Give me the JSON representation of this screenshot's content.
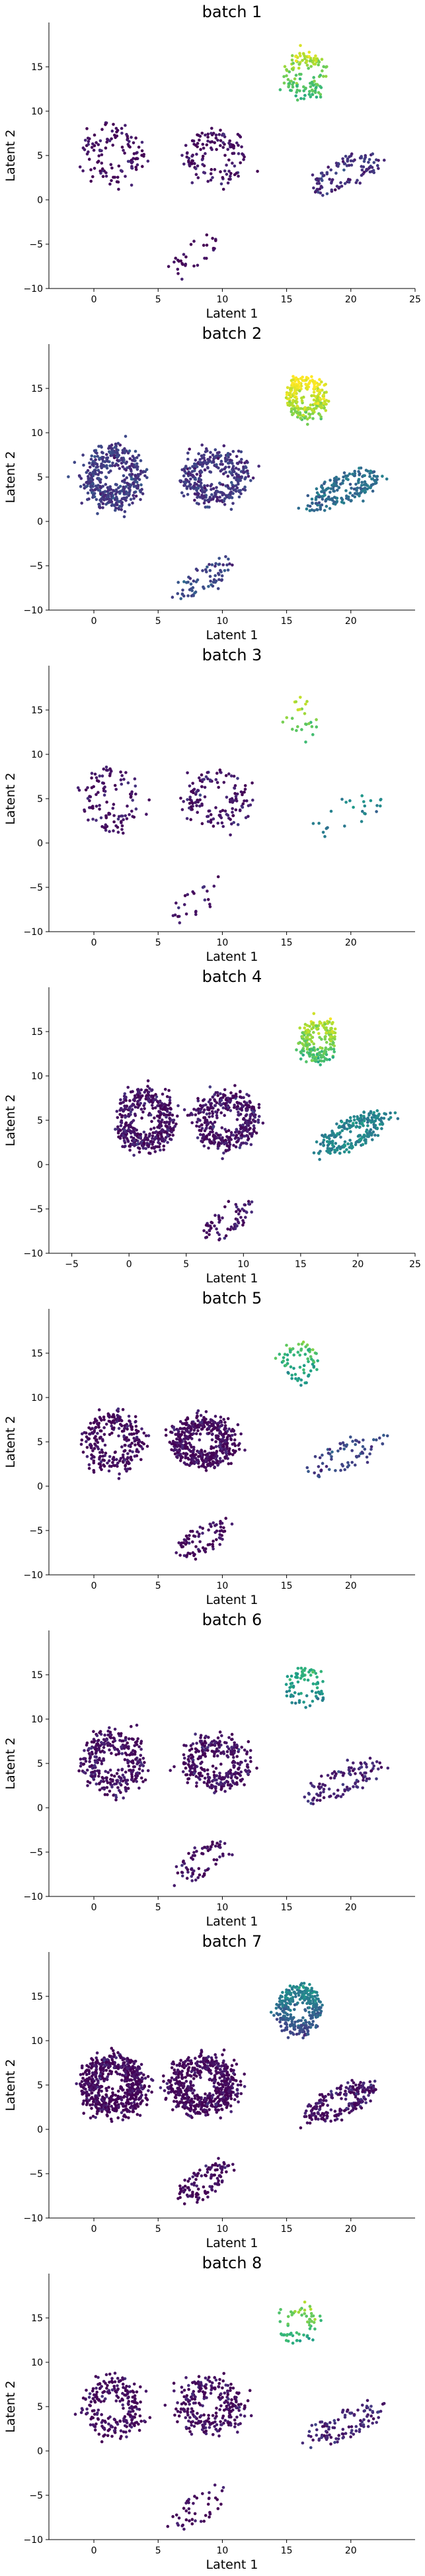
{
  "chart_data": [
    {
      "type": "scatter",
      "title": "batch 1",
      "xlabel": "Latent 1",
      "ylabel": "Latent 2",
      "xlim": [
        -3.5,
        25
      ],
      "ylim": [
        -10,
        20
      ],
      "xticks": [
        0,
        5,
        10,
        15,
        20,
        25
      ],
      "yticks": [
        -10,
        -5,
        0,
        5,
        10,
        15
      ],
      "colormap": "viridis",
      "clusters": [
        {
          "name": "left-loop",
          "cx": 1.5,
          "cy": 5,
          "sx": 2.0,
          "sy": 3.0,
          "n": 120,
          "level": 0.04
        },
        {
          "name": "mid-loop",
          "cx": 9.5,
          "cy": 4.8,
          "sx": 2.2,
          "sy": 2.6,
          "n": 130,
          "level": 0.05
        },
        {
          "name": "bottom-tail",
          "cx": 8,
          "cy": -6,
          "sx": 1.8,
          "sy": 1.4,
          "n": 30,
          "level": 0.03
        },
        {
          "name": "top-right",
          "cx": 16.5,
          "cy": 14,
          "sx": 1.4,
          "sy": 2.2,
          "n": 130,
          "level": 0.78
        },
        {
          "name": "right-arc",
          "cx": 19.5,
          "cy": 3,
          "sx": 2.5,
          "sy": 1.5,
          "n": 110,
          "level": 0.14
        }
      ]
    },
    {
      "type": "scatter",
      "title": "batch 2",
      "xlabel": "Latent 1",
      "ylabel": "Latent 2",
      "xlim": [
        -3.5,
        25
      ],
      "ylim": [
        -10,
        20
      ],
      "xticks": [
        0,
        5,
        10,
        15,
        20
      ],
      "yticks": [
        -10,
        -5,
        0,
        5,
        10,
        15
      ],
      "colormap": "viridis",
      "clusters": [
        {
          "name": "left-loop",
          "cx": 1.5,
          "cy": 5,
          "sx": 2.0,
          "sy": 3.0,
          "n": 420,
          "level": 0.18
        },
        {
          "name": "mid-loop",
          "cx": 9.5,
          "cy": 5,
          "sx": 2.2,
          "sy": 2.6,
          "n": 360,
          "level": 0.16
        },
        {
          "name": "bottom-tail",
          "cx": 8.5,
          "cy": -6.5,
          "sx": 1.8,
          "sy": 1.5,
          "n": 70,
          "level": 0.22
        },
        {
          "name": "top-right",
          "cx": 16.5,
          "cy": 14,
          "sx": 1.4,
          "sy": 2.0,
          "n": 240,
          "level": 0.92
        },
        {
          "name": "right-arc",
          "cx": 19.5,
          "cy": 3.5,
          "sx": 2.5,
          "sy": 1.5,
          "n": 190,
          "level": 0.35
        }
      ]
    },
    {
      "type": "scatter",
      "title": "batch 3",
      "xlabel": "Latent 1",
      "ylabel": "Latent 2",
      "xlim": [
        -3.5,
        25
      ],
      "ylim": [
        -10,
        20
      ],
      "xticks": [
        0,
        5,
        10,
        15,
        20
      ],
      "yticks": [
        -10,
        -5,
        0,
        5,
        10,
        15
      ],
      "colormap": "viridis",
      "clusters": [
        {
          "name": "left-loop",
          "cx": 1.5,
          "cy": 5,
          "sx": 2.0,
          "sy": 3.0,
          "n": 110,
          "level": 0.05
        },
        {
          "name": "mid-loop",
          "cx": 9.5,
          "cy": 5,
          "sx": 2.2,
          "sy": 2.6,
          "n": 140,
          "level": 0.06
        },
        {
          "name": "bottom-tail",
          "cx": 8,
          "cy": -6.5,
          "sx": 1.8,
          "sy": 1.5,
          "n": 25,
          "level": 0.05
        },
        {
          "name": "top-right",
          "cx": 16,
          "cy": 14,
          "sx": 1.2,
          "sy": 2.0,
          "n": 25,
          "level": 0.8
        },
        {
          "name": "right-arc",
          "cx": 19.5,
          "cy": 3,
          "sx": 2.5,
          "sy": 1.5,
          "n": 25,
          "level": 0.45
        }
      ]
    },
    {
      "type": "scatter",
      "title": "batch 4",
      "xlabel": "Latent 1",
      "ylabel": "Latent 2",
      "xlim": [
        -7,
        25
      ],
      "ylim": [
        -10,
        20
      ],
      "xticks": [
        -5,
        0,
        5,
        10,
        15,
        20,
        25
      ],
      "yticks": [
        -10,
        -5,
        0,
        5,
        10,
        15
      ],
      "colormap": "viridis",
      "clusters": [
        {
          "name": "left-loop",
          "cx": 1.5,
          "cy": 5,
          "sx": 2.2,
          "sy": 3.0,
          "n": 420,
          "level": 0.05
        },
        {
          "name": "mid-loop",
          "cx": 8.5,
          "cy": 5,
          "sx": 2.4,
          "sy": 2.8,
          "n": 380,
          "level": 0.05
        },
        {
          "name": "bottom-tail",
          "cx": 8.5,
          "cy": -6.5,
          "sx": 1.8,
          "sy": 1.5,
          "n": 70,
          "level": 0.05
        },
        {
          "name": "top-right",
          "cx": 16.5,
          "cy": 14,
          "sx": 1.4,
          "sy": 2.2,
          "n": 200,
          "level": 0.8
        },
        {
          "name": "right-arc",
          "cx": 19.5,
          "cy": 3.5,
          "sx": 2.5,
          "sy": 1.5,
          "n": 240,
          "level": 0.45
        }
      ]
    },
    {
      "type": "scatter",
      "title": "batch 5",
      "xlabel": "Latent 1",
      "ylabel": "Latent 2",
      "xlim": [
        -3.5,
        25
      ],
      "ylim": [
        -10,
        20
      ],
      "xticks": [
        0,
        5,
        10,
        15,
        20
      ],
      "yticks": [
        -10,
        -5,
        0,
        5,
        10,
        15
      ],
      "colormap": "viridis",
      "clusters": [
        {
          "name": "left-loop",
          "cx": 1.5,
          "cy": 5,
          "sx": 2.0,
          "sy": 3.0,
          "n": 260,
          "level": 0.03
        },
        {
          "name": "mid-loop",
          "cx": 8.5,
          "cy": 5,
          "sx": 2.2,
          "sy": 2.4,
          "n": 480,
          "level": 0.03
        },
        {
          "name": "bottom-tail",
          "cx": 8.5,
          "cy": -6,
          "sx": 1.8,
          "sy": 1.5,
          "n": 80,
          "level": 0.03
        },
        {
          "name": "top-right",
          "cx": 16,
          "cy": 14,
          "sx": 1.2,
          "sy": 2.2,
          "n": 70,
          "level": 0.65
        },
        {
          "name": "right-arc",
          "cx": 19.5,
          "cy": 3.5,
          "sx": 2.5,
          "sy": 1.5,
          "n": 70,
          "level": 0.2
        }
      ]
    },
    {
      "type": "scatter",
      "title": "batch 6",
      "xlabel": "Latent 1",
      "ylabel": "Latent 2",
      "xlim": [
        -3.5,
        25
      ],
      "ylim": [
        -10,
        20
      ],
      "xticks": [
        0,
        5,
        10,
        15,
        20
      ],
      "yticks": [
        -10,
        -5,
        0,
        5,
        10,
        15
      ],
      "colormap": "viridis",
      "clusters": [
        {
          "name": "left-loop",
          "cx": 1.5,
          "cy": 5,
          "sx": 2.0,
          "sy": 3.0,
          "n": 320,
          "level": 0.04
        },
        {
          "name": "mid-loop",
          "cx": 9.5,
          "cy": 5,
          "sx": 2.2,
          "sy": 2.6,
          "n": 300,
          "level": 0.04
        },
        {
          "name": "bottom-tail",
          "cx": 8.5,
          "cy": -6,
          "sx": 1.8,
          "sy": 1.5,
          "n": 70,
          "level": 0.04
        },
        {
          "name": "top-right",
          "cx": 16.5,
          "cy": 13.5,
          "sx": 1.4,
          "sy": 2.0,
          "n": 80,
          "level": 0.55
        },
        {
          "name": "right-arc",
          "cx": 19.5,
          "cy": 3,
          "sx": 2.5,
          "sy": 1.5,
          "n": 110,
          "level": 0.1
        }
      ]
    },
    {
      "type": "scatter",
      "title": "batch 7",
      "xlabel": "Latent 1",
      "ylabel": "Latent 2",
      "xlim": [
        -3.5,
        25
      ],
      "ylim": [
        -10,
        20
      ],
      "xticks": [
        0,
        5,
        10,
        15,
        20
      ],
      "yticks": [
        -10,
        -5,
        0,
        5,
        10,
        15
      ],
      "colormap": "viridis",
      "clusters": [
        {
          "name": "left-loop",
          "cx": 1.5,
          "cy": 5,
          "sx": 2.2,
          "sy": 3.0,
          "n": 620,
          "level": 0.02
        },
        {
          "name": "mid-loop",
          "cx": 8.5,
          "cy": 5,
          "sx": 2.4,
          "sy": 2.8,
          "n": 560,
          "level": 0.02
        },
        {
          "name": "bottom-tail",
          "cx": 8.5,
          "cy": -6,
          "sx": 1.8,
          "sy": 1.5,
          "n": 110,
          "level": 0.02
        },
        {
          "name": "top-right",
          "cx": 16,
          "cy": 13.5,
          "sx": 1.4,
          "sy": 2.4,
          "n": 300,
          "level": 0.35
        },
        {
          "name": "right-arc",
          "cx": 19,
          "cy": 3,
          "sx": 2.5,
          "sy": 1.5,
          "n": 220,
          "level": 0.05
        }
      ]
    },
    {
      "type": "scatter",
      "title": "batch 8",
      "xlabel": "Latent 1",
      "ylabel": "Latent 2",
      "xlim": [
        -3.5,
        25
      ],
      "ylim": [
        -10,
        20
      ],
      "xticks": [
        0,
        5,
        10,
        15,
        20
      ],
      "yticks": [
        -10,
        -5,
        0,
        5,
        10,
        15
      ],
      "colormap": "viridis",
      "clusters": [
        {
          "name": "left-loop",
          "cx": 1.5,
          "cy": 5,
          "sx": 2.0,
          "sy": 3.0,
          "n": 230,
          "level": 0.03
        },
        {
          "name": "mid-loop",
          "cx": 9,
          "cy": 5,
          "sx": 2.2,
          "sy": 2.6,
          "n": 260,
          "level": 0.03
        },
        {
          "name": "bottom-tail",
          "cx": 8,
          "cy": -6.5,
          "sx": 1.8,
          "sy": 1.5,
          "n": 45,
          "level": 0.03
        },
        {
          "name": "top-right",
          "cx": 16,
          "cy": 14,
          "sx": 1.3,
          "sy": 2.2,
          "n": 60,
          "level": 0.7
        },
        {
          "name": "right-arc",
          "cx": 19.5,
          "cy": 3,
          "sx": 2.5,
          "sy": 1.5,
          "n": 110,
          "level": 0.1
        }
      ]
    }
  ]
}
